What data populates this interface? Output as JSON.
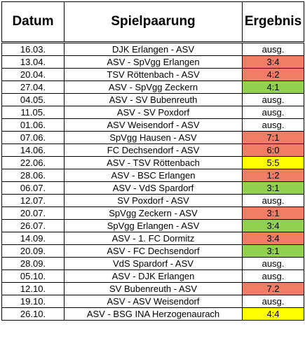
{
  "header": {
    "date": "Datum",
    "match": "Spielpaarung",
    "result": "Ergebnis"
  },
  "colors": {
    "loss": "#f27d67",
    "win": "#92d050",
    "draw": "#ffff00",
    "none": "#ffffff"
  },
  "rows": [
    {
      "date": "16.03.",
      "match": "DJK Erlangen - ASV",
      "result": "ausg.",
      "status": "none"
    },
    {
      "date": "13.04.",
      "match": "ASV - SpVgg Erlangen",
      "result": "3:4",
      "status": "loss"
    },
    {
      "date": "20.04.",
      "match": "TSV Röttenbach - ASV",
      "result": "4:2",
      "status": "loss"
    },
    {
      "date": "27.04.",
      "match": "ASV - SpVgg Zeckern",
      "result": "4:1",
      "status": "win"
    },
    {
      "date": "04.05.",
      "match": "ASV - SV Bubenreuth",
      "result": "ausg.",
      "status": "none"
    },
    {
      "date": "11.05.",
      "match": "ASV - SV Poxdorf",
      "result": "ausg.",
      "status": "none"
    },
    {
      "date": "01.06.",
      "match": "ASV Weisendorf - ASV",
      "result": "ausg.",
      "status": "none"
    },
    {
      "date": "07.06.",
      "match": "SpVgg Hausen - ASV",
      "result": "7:1",
      "status": "loss"
    },
    {
      "date": "14.06.",
      "match": "FC Dechsendorf - ASV",
      "result": "6:0",
      "status": "loss"
    },
    {
      "date": "22.06.",
      "match": "ASV - TSV Röttenbach",
      "result": "5:5",
      "status": "draw"
    },
    {
      "date": "28.06.",
      "match": "ASV - BSC Erlangen",
      "result": "1:2",
      "status": "loss"
    },
    {
      "date": "06.07.",
      "match": "ASV - VdS Spardorf",
      "result": "3:1",
      "status": "win"
    },
    {
      "date": "12.07.",
      "match": "SV Poxdorf - ASV",
      "result": "ausg.",
      "status": "none"
    },
    {
      "date": "20.07.",
      "match": "SpVgg Zeckern - ASV",
      "result": "3:1",
      "status": "loss"
    },
    {
      "date": "26.07.",
      "match": "SpVgg Erlangen - ASV",
      "result": "3:4",
      "status": "win"
    },
    {
      "date": "14.09.",
      "match": "ASV - 1. FC Dormitz",
      "result": "3:4",
      "status": "loss"
    },
    {
      "date": "20.09.",
      "match": "ASV - FC Dechsendorf",
      "result": "3:1",
      "status": "win"
    },
    {
      "date": "28.09.",
      "match": "VdS Spardorf - ASV",
      "result": "ausg.",
      "status": "none"
    },
    {
      "date": "05.10.",
      "match": "ASV - DJK Erlangen",
      "result": "ausg.",
      "status": "none"
    },
    {
      "date": "12.10.",
      "match": "SV Bubenreuth - ASV",
      "result": "7.2",
      "status": "loss"
    },
    {
      "date": "19.10.",
      "match": "ASV - ASV Weisendorf",
      "result": "ausg.",
      "status": "none"
    },
    {
      "date": "26.10.",
      "match": "ASV - BSG INA Herzogenaurach",
      "result": "4:4",
      "status": "draw"
    }
  ]
}
